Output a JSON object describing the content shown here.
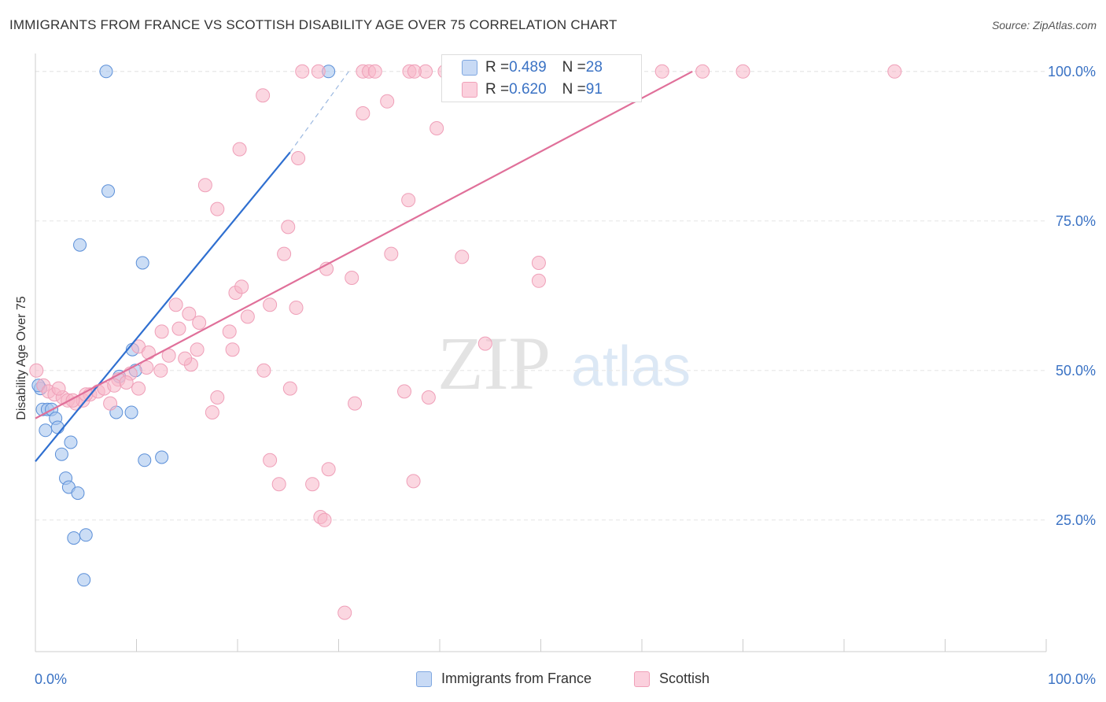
{
  "title": "IMMIGRANTS FROM FRANCE VS SCOTTISH DISABILITY AGE OVER 75 CORRELATION CHART",
  "source": "Source: ZipAtlas.com",
  "watermark": {
    "zip": "ZIP",
    "atlas": "atlas"
  },
  "legend_stats": [
    {
      "r_label": "R = ",
      "r": "0.489",
      "n_label": "N = ",
      "n": "28"
    },
    {
      "r_label": "R = ",
      "r": "0.620",
      "n_label": "N = ",
      "n": "91"
    }
  ],
  "chart_data": {
    "type": "scatter",
    "title": "IMMIGRANTS FROM FRANCE VS SCOTTISH DISABILITY AGE OVER 75 CORRELATION CHART",
    "xlabel": "",
    "ylabel": "Disability Age Over 75",
    "xlim": [
      0,
      100
    ],
    "ylim": [
      3,
      103
    ],
    "x_tick_labels": [
      "0.0%",
      "100.0%"
    ],
    "y_ticks": [
      25,
      50,
      75,
      100
    ],
    "y_tick_labels": [
      "25.0%",
      "50.0%",
      "75.0%",
      "100.0%"
    ],
    "grid": true,
    "legend_position": "bottom",
    "series": [
      {
        "name": "Immigrants from France",
        "color": "#a9c7ef",
        "line_color": "#2f6fd0",
        "r": 0.489,
        "n": 28,
        "trend": {
          "x0": 0,
          "y0": 34.8,
          "x1": 25.2,
          "y1": 86.5,
          "dash_x1": 31.0,
          "dash_y1": 100.0
        },
        "points": [
          [
            0.5,
            47
          ],
          [
            0.7,
            43.5
          ],
          [
            1.2,
            43.5
          ],
          [
            1.6,
            43.5
          ],
          [
            1.0,
            40
          ],
          [
            2.0,
            42
          ],
          [
            2.2,
            40.5
          ],
          [
            3.5,
            38
          ],
          [
            2.6,
            36
          ],
          [
            3.0,
            32
          ],
          [
            3.3,
            30.5
          ],
          [
            4.2,
            29.5
          ],
          [
            3.8,
            22
          ],
          [
            5.0,
            22.5
          ],
          [
            4.8,
            15
          ],
          [
            7.0,
            100
          ],
          [
            29.0,
            100
          ],
          [
            7.2,
            80
          ],
          [
            4.4,
            71
          ],
          [
            10.6,
            68
          ],
          [
            9.6,
            53.5
          ],
          [
            8.3,
            49
          ],
          [
            9.9,
            50
          ],
          [
            8.0,
            43
          ],
          [
            9.5,
            43
          ],
          [
            12.5,
            35.5
          ],
          [
            10.8,
            35
          ],
          [
            0.3,
            47.5
          ]
        ]
      },
      {
        "name": "Scottish",
        "color": "#f7b6c9",
        "line_color": "#e0709a",
        "r": 0.62,
        "n": 91,
        "trend": {
          "x0": 0,
          "y0": 42.0,
          "x1": 65.0,
          "y1": 100.0
        },
        "points": [
          [
            0.1,
            50
          ],
          [
            0.8,
            47.5
          ],
          [
            1.3,
            46.5
          ],
          [
            1.9,
            46
          ],
          [
            2.7,
            45.5
          ],
          [
            3.2,
            45
          ],
          [
            4.0,
            44.5
          ],
          [
            4.7,
            45
          ],
          [
            5.4,
            46
          ],
          [
            6.2,
            46.5
          ],
          [
            7.4,
            44.5
          ],
          [
            8.2,
            48.5
          ],
          [
            9.4,
            49.5
          ],
          [
            10.2,
            47
          ],
          [
            10.2,
            54
          ],
          [
            11.2,
            53
          ],
          [
            12.4,
            50
          ],
          [
            13.2,
            52.5
          ],
          [
            14.2,
            57
          ],
          [
            12.5,
            56.5
          ],
          [
            13.9,
            61
          ],
          [
            15.2,
            59.5
          ],
          [
            16.2,
            58
          ],
          [
            15.4,
            51
          ],
          [
            16.0,
            53.5
          ],
          [
            18.0,
            45.5
          ],
          [
            17.5,
            43
          ],
          [
            19.2,
            56.5
          ],
          [
            19.5,
            53.5
          ],
          [
            19.8,
            63
          ],
          [
            20.4,
            64
          ],
          [
            22.6,
            50
          ],
          [
            23.2,
            61
          ],
          [
            23.2,
            35
          ],
          [
            24.1,
            31
          ],
          [
            24.6,
            69.5
          ],
          [
            25.0,
            74
          ],
          [
            25.2,
            47
          ],
          [
            25.8,
            60.5
          ],
          [
            26.0,
            85.5
          ],
          [
            27.4,
            31
          ],
          [
            28.2,
            25.5
          ],
          [
            28.6,
            25
          ],
          [
            28.8,
            67
          ],
          [
            29.0,
            33.5
          ],
          [
            30.6,
            9.5
          ],
          [
            31.3,
            65.5
          ],
          [
            31.6,
            44.5
          ],
          [
            32.4,
            93
          ],
          [
            34.8,
            95
          ],
          [
            35.2,
            69.5
          ],
          [
            36.5,
            46.5
          ],
          [
            36.9,
            78.5
          ],
          [
            37.4,
            31.5
          ],
          [
            38.6,
            100
          ],
          [
            39.7,
            90.5
          ],
          [
            38.9,
            45.5
          ],
          [
            42.2,
            69
          ],
          [
            44.5,
            54.5
          ],
          [
            49.8,
            68
          ],
          [
            49.8,
            65
          ],
          [
            20.2,
            87
          ],
          [
            22.5,
            96
          ],
          [
            16.8,
            81
          ],
          [
            18.0,
            77
          ],
          [
            26.4,
            100
          ],
          [
            28.0,
            100
          ],
          [
            32.4,
            100
          ],
          [
            33.0,
            100
          ],
          [
            33.6,
            100
          ],
          [
            37.0,
            100
          ],
          [
            37.5,
            100
          ],
          [
            40.5,
            100
          ],
          [
            45.5,
            100
          ],
          [
            49.5,
            100
          ],
          [
            51.0,
            100
          ],
          [
            56.0,
            100
          ],
          [
            62.0,
            100
          ],
          [
            66.0,
            100
          ],
          [
            70.0,
            100
          ],
          [
            85.0,
            100
          ],
          [
            6.8,
            47
          ],
          [
            7.8,
            47.5
          ],
          [
            3.7,
            45
          ],
          [
            2.3,
            47
          ],
          [
            5.0,
            46
          ],
          [
            9.0,
            48
          ],
          [
            11.0,
            50.5
          ],
          [
            14.8,
            52
          ],
          [
            21.0,
            59
          ]
        ]
      }
    ]
  }
}
